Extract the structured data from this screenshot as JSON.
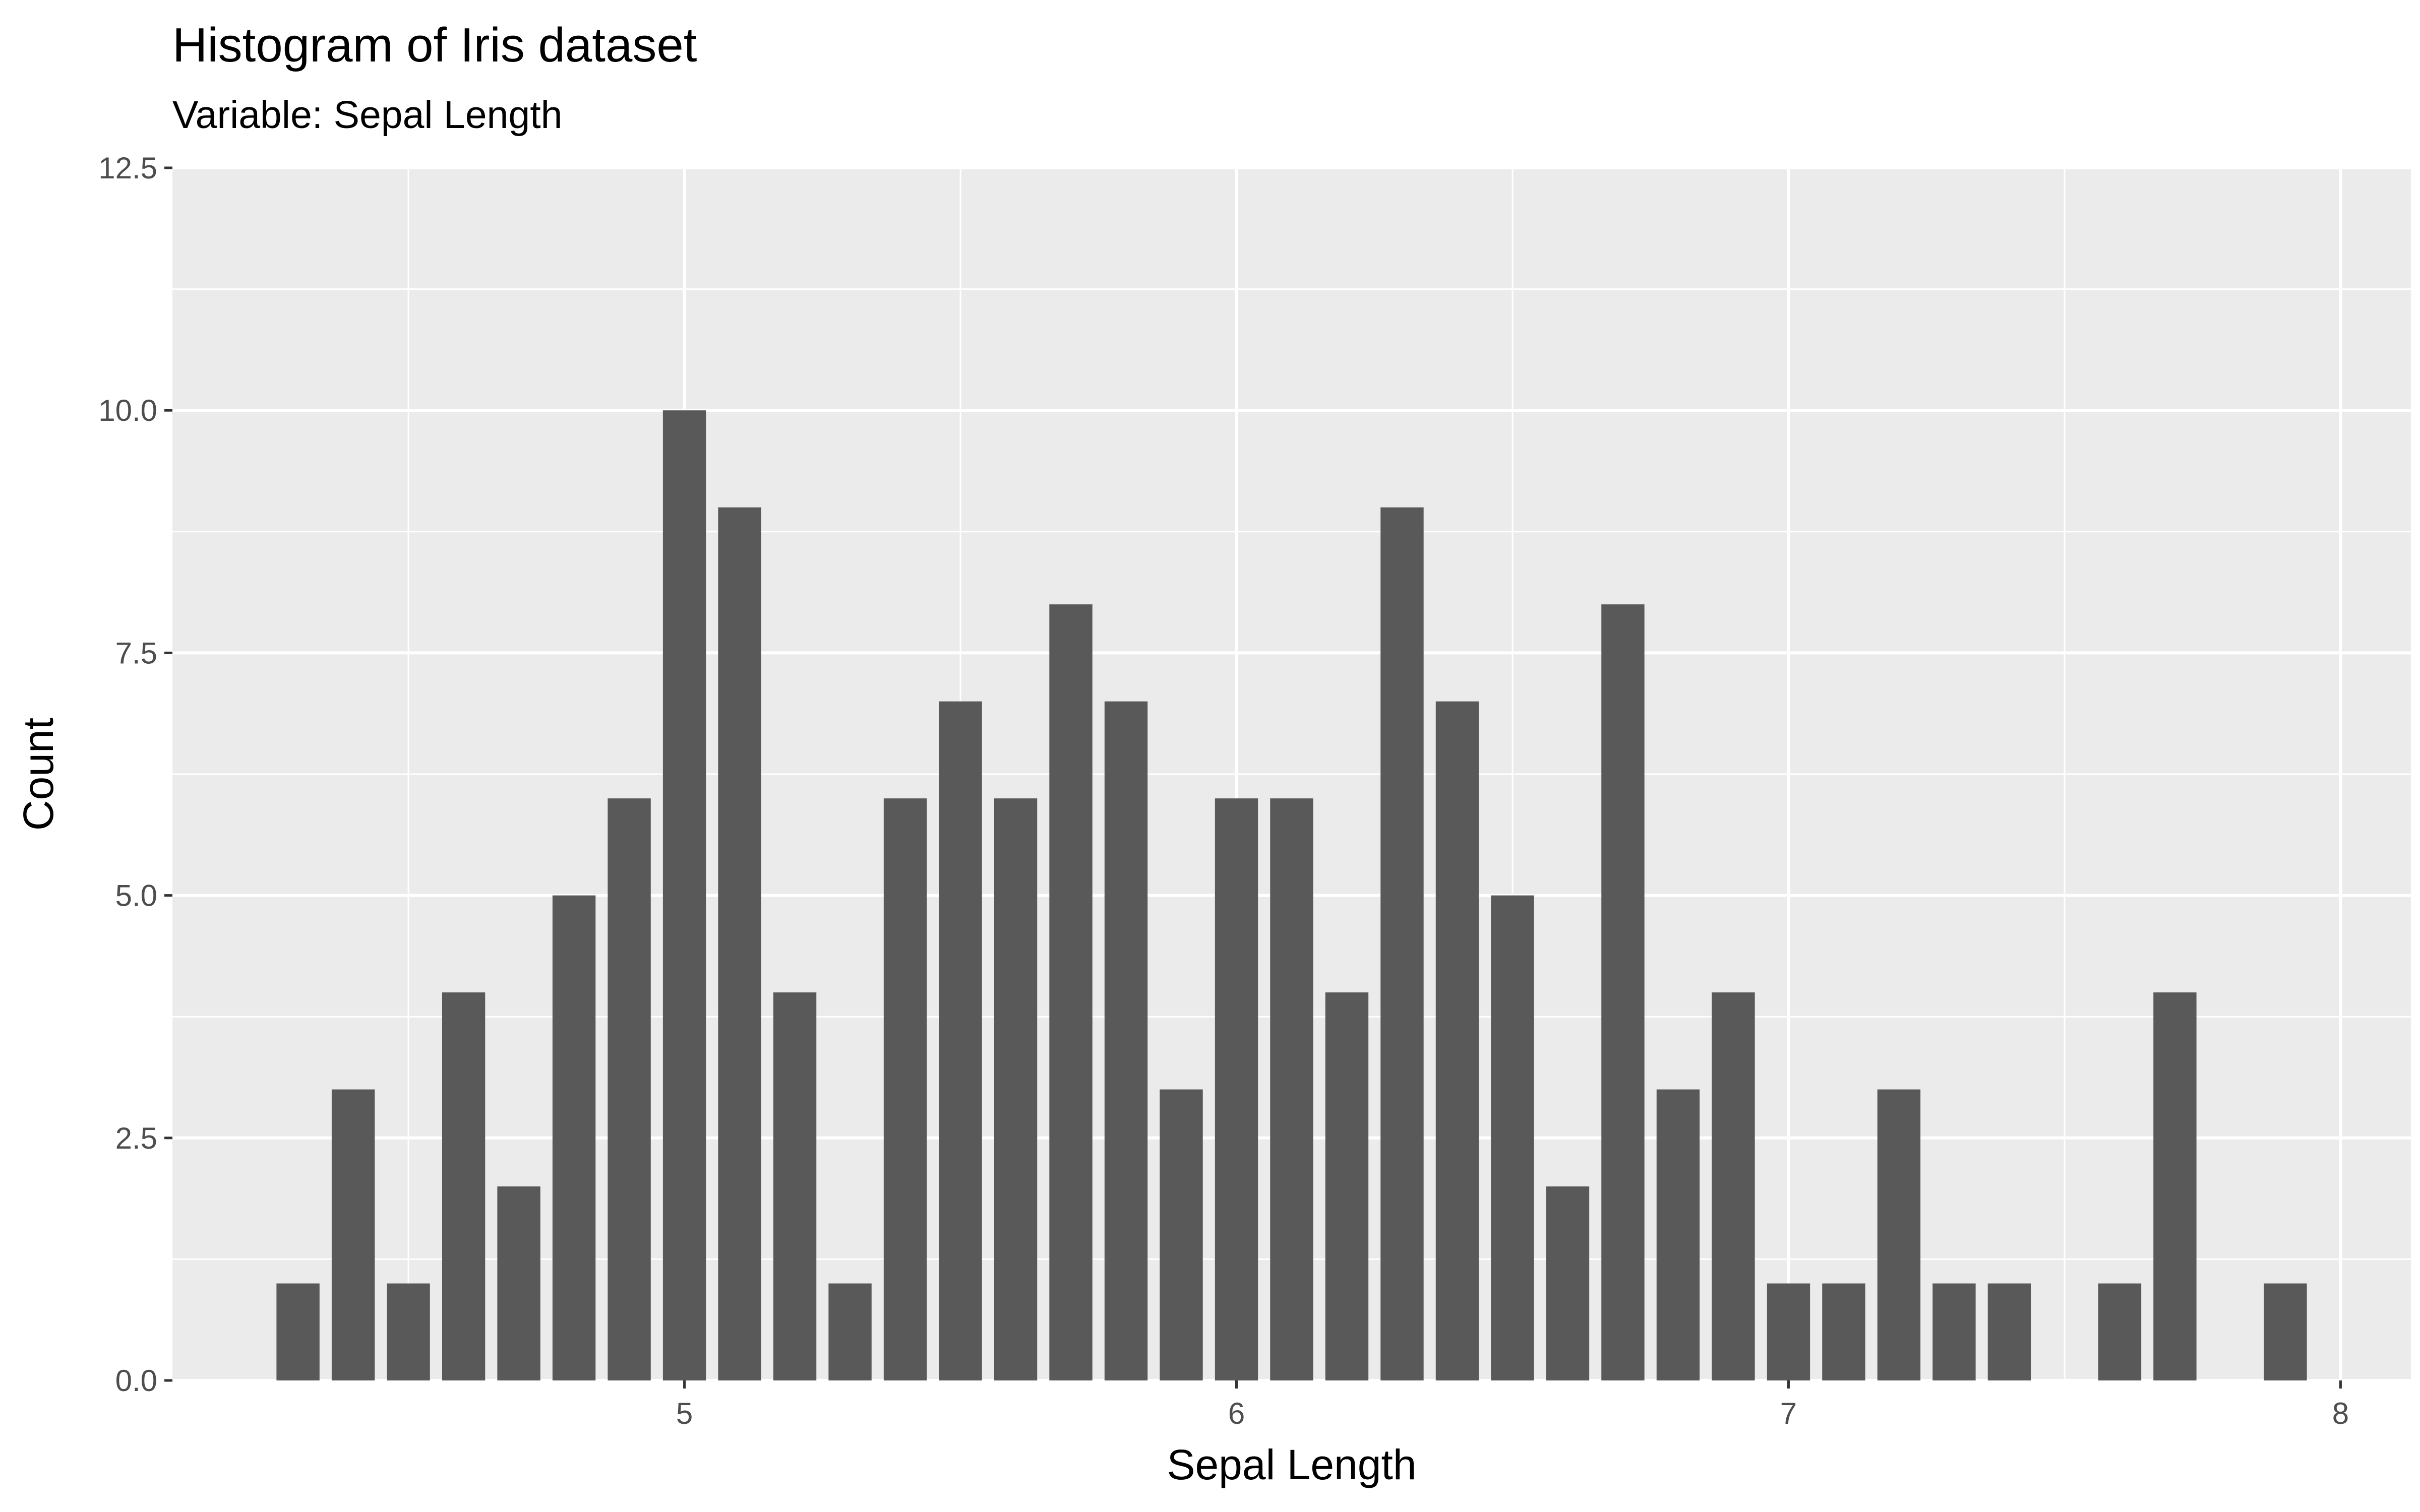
{
  "chart_data": {
    "type": "bar",
    "title": "Histogram of Iris dataset",
    "subtitle": "Variable: Sepal Length",
    "xlabel": "Sepal Length",
    "ylabel": "Count",
    "xlim": [
      4.0725,
      8.1275
    ],
    "ylim": [
      0,
      12.5
    ],
    "x_ticks": [
      5,
      6,
      7,
      8
    ],
    "x_tick_labels": [
      "5",
      "6",
      "7",
      "8"
    ],
    "y_ticks": [
      0,
      2.5,
      5,
      7.5,
      10,
      12.5
    ],
    "y_tick_labels": [
      "0.0",
      "2.5",
      "5.0",
      "7.5",
      "10.0",
      "12.5"
    ],
    "bin_width": 0.1,
    "bins": [
      {
        "x": 4.3,
        "count": 1
      },
      {
        "x": 4.4,
        "count": 3
      },
      {
        "x": 4.5,
        "count": 1
      },
      {
        "x": 4.6,
        "count": 4
      },
      {
        "x": 4.7,
        "count": 2
      },
      {
        "x": 4.8,
        "count": 5
      },
      {
        "x": 4.9,
        "count": 6
      },
      {
        "x": 5.0,
        "count": 10
      },
      {
        "x": 5.1,
        "count": 9
      },
      {
        "x": 5.2,
        "count": 4
      },
      {
        "x": 5.3,
        "count": 1
      },
      {
        "x": 5.4,
        "count": 6
      },
      {
        "x": 5.5,
        "count": 7
      },
      {
        "x": 5.6,
        "count": 6
      },
      {
        "x": 5.7,
        "count": 8
      },
      {
        "x": 5.8,
        "count": 7
      },
      {
        "x": 5.9,
        "count": 3
      },
      {
        "x": 6.0,
        "count": 6
      },
      {
        "x": 6.1,
        "count": 6
      },
      {
        "x": 6.2,
        "count": 4
      },
      {
        "x": 6.3,
        "count": 9
      },
      {
        "x": 6.4,
        "count": 7
      },
      {
        "x": 6.5,
        "count": 5
      },
      {
        "x": 6.6,
        "count": 2
      },
      {
        "x": 6.7,
        "count": 8
      },
      {
        "x": 6.8,
        "count": 3
      },
      {
        "x": 6.9,
        "count": 4
      },
      {
        "x": 7.0,
        "count": 1
      },
      {
        "x": 7.1,
        "count": 1
      },
      {
        "x": 7.2,
        "count": 3
      },
      {
        "x": 7.3,
        "count": 1
      },
      {
        "x": 7.4,
        "count": 1
      },
      {
        "x": 7.6,
        "count": 1
      },
      {
        "x": 7.7,
        "count": 4
      },
      {
        "x": 7.9,
        "count": 1
      }
    ],
    "grid": true,
    "legend": "none",
    "colors": {
      "bar": "#595959",
      "panel": "#ebebeb",
      "grid": "#ffffff",
      "axis_text": "#4d4d4d",
      "text": "#000000"
    }
  }
}
